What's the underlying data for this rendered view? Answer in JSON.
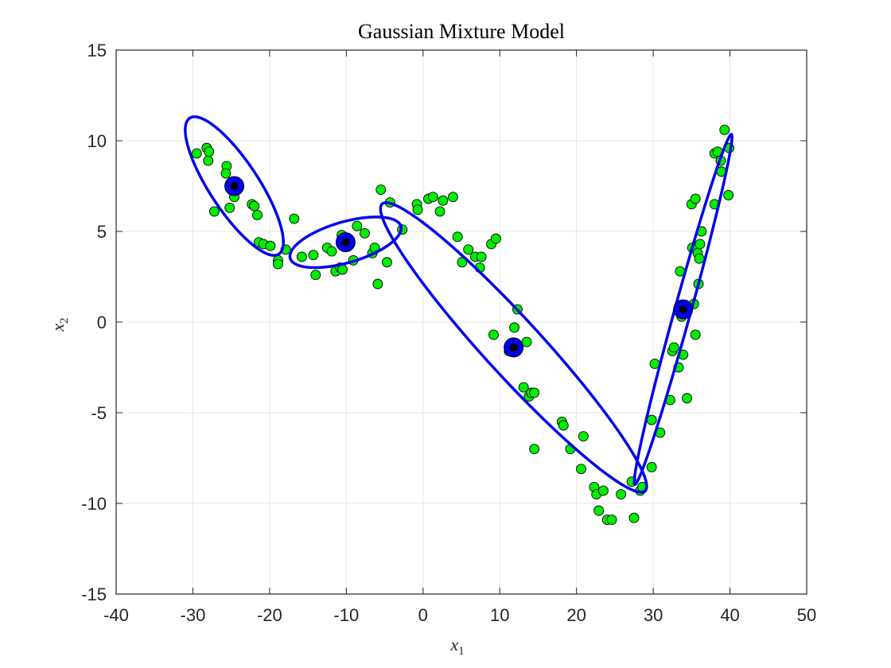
{
  "chart_data": {
    "type": "scatter",
    "title": "Gaussian Mixture Model",
    "xlabel": "x",
    "xlabel_sub": "1",
    "ylabel": "x",
    "ylabel_sub": "2",
    "xlim": [
      -40,
      50
    ],
    "ylim": [
      -15,
      15
    ],
    "xticks": [
      -40,
      -30,
      -20,
      -10,
      0,
      10,
      20,
      30,
      40,
      50
    ],
    "yticks": [
      -15,
      -10,
      -5,
      0,
      5,
      10,
      15
    ],
    "grid": true,
    "colors": {
      "points": "#00ee00",
      "point_edge": "#000000",
      "ellipse": "#0000ee",
      "center_outer": "#0000ee",
      "center_inner": "#000000",
      "grid": "#e6e6e6",
      "axes": "#262626"
    },
    "points": [
      [
        -29.5,
        9.3
      ],
      [
        -28.2,
        9.6
      ],
      [
        -28.0,
        8.9
      ],
      [
        -27.9,
        9.4
      ],
      [
        -27.2,
        6.1
      ],
      [
        -25.6,
        8.6
      ],
      [
        -25.7,
        8.2
      ],
      [
        -25.2,
        6.3
      ],
      [
        -24.5,
        7.3
      ],
      [
        -24.6,
        6.9
      ],
      [
        -22.3,
        6.5
      ],
      [
        -22.0,
        6.4
      ],
      [
        -21.6,
        5.9
      ],
      [
        -21.4,
        4.4
      ],
      [
        -20.8,
        4.3
      ],
      [
        -19.9,
        4.2
      ],
      [
        -18.9,
        3.4
      ],
      [
        -18.9,
        3.2
      ],
      [
        -17.9,
        4.0
      ],
      [
        -16.8,
        5.7
      ],
      [
        -15.8,
        3.6
      ],
      [
        -14.3,
        3.7
      ],
      [
        -14.0,
        2.6
      ],
      [
        -12.5,
        4.1
      ],
      [
        -11.9,
        3.9
      ],
      [
        -11.4,
        2.8
      ],
      [
        -10.8,
        3.0
      ],
      [
        -10.5,
        2.9
      ],
      [
        -10.6,
        4.8
      ],
      [
        -9.1,
        3.4
      ],
      [
        -8.6,
        5.3
      ],
      [
        -7.6,
        4.9
      ],
      [
        -6.6,
        3.8
      ],
      [
        -6.3,
        4.1
      ],
      [
        -5.9,
        2.1
      ],
      [
        -5.5,
        7.3
      ],
      [
        -4.7,
        3.3
      ],
      [
        -4.3,
        6.6
      ],
      [
        -2.7,
        5.1
      ],
      [
        -0.8,
        6.5
      ],
      [
        -0.7,
        6.2
      ],
      [
        0.7,
        6.8
      ],
      [
        1.3,
        6.9
      ],
      [
        2.2,
        6.1
      ],
      [
        2.6,
        6.7
      ],
      [
        3.9,
        6.9
      ],
      [
        4.5,
        4.7
      ],
      [
        5.1,
        3.3
      ],
      [
        5.9,
        4.0
      ],
      [
        6.8,
        3.6
      ],
      [
        7.6,
        3.6
      ],
      [
        7.4,
        3.0
      ],
      [
        8.9,
        4.3
      ],
      [
        9.5,
        4.6
      ],
      [
        9.2,
        -0.7
      ],
      [
        11.2,
        -1.6
      ],
      [
        11.9,
        -0.3
      ],
      [
        12.3,
        0.7
      ],
      [
        13.1,
        -3.6
      ],
      [
        13.5,
        -1.1
      ],
      [
        13.8,
        -4.1
      ],
      [
        14.1,
        -3.9
      ],
      [
        14.5,
        -3.9
      ],
      [
        14.5,
        -7.0
      ],
      [
        18.1,
        -5.5
      ],
      [
        18.3,
        -5.7
      ],
      [
        19.2,
        -7.0
      ],
      [
        20.6,
        -8.1
      ],
      [
        20.9,
        -6.3
      ],
      [
        22.3,
        -9.1
      ],
      [
        22.6,
        -9.5
      ],
      [
        22.9,
        -10.4
      ],
      [
        23.5,
        -9.3
      ],
      [
        24.0,
        -10.9
      ],
      [
        24.6,
        -10.9
      ],
      [
        25.8,
        -9.5
      ],
      [
        27.2,
        -8.8
      ],
      [
        27.5,
        -10.8
      ],
      [
        28.3,
        -9.3
      ],
      [
        28.6,
        -9.1
      ],
      [
        29.8,
        -8.0
      ],
      [
        29.8,
        -5.4
      ],
      [
        30.2,
        -2.3
      ],
      [
        30.9,
        -6.1
      ],
      [
        32.2,
        -4.3
      ],
      [
        32.5,
        -1.6
      ],
      [
        32.7,
        -1.4
      ],
      [
        33.3,
        -2.5
      ],
      [
        33.5,
        2.8
      ],
      [
        33.7,
        0.3
      ],
      [
        34.0,
        0.9
      ],
      [
        33.9,
        -1.8
      ],
      [
        34.4,
        -4.2
      ],
      [
        35.0,
        6.5
      ],
      [
        35.1,
        4.1
      ],
      [
        35.3,
        1.0
      ],
      [
        35.5,
        6.8
      ],
      [
        35.5,
        -0.7
      ],
      [
        35.8,
        3.8
      ],
      [
        35.9,
        2.1
      ],
      [
        36.0,
        3.5
      ],
      [
        36.3,
        5.0
      ],
      [
        38.0,
        6.5
      ],
      [
        38.0,
        9.3
      ],
      [
        38.4,
        9.4
      ],
      [
        38.8,
        8.9
      ],
      [
        38.9,
        8.3
      ],
      [
        39.3,
        10.6
      ],
      [
        39.8,
        7.0
      ],
      [
        39.9,
        9.6
      ],
      [
        36.1,
        4.3
      ]
    ],
    "components": [
      {
        "mean": [
          -24.6,
          7.5
        ],
        "sigma_x": 2.61,
        "sigma_y": 1.56,
        "corr": -0.81
      },
      {
        "mean": [
          -10.1,
          4.4
        ],
        "sigma_x": 2.96,
        "sigma_y": 0.57,
        "corr": 0.55
      },
      {
        "mean": [
          11.8,
          -1.4
        ],
        "sigma_x": 7.08,
        "sigma_y": 3.26,
        "corr": -0.958
      },
      {
        "mean": [
          33.9,
          0.7
        ],
        "sigma_x": 2.6,
        "sigma_y": 3.94,
        "corr": 0.985
      }
    ],
    "ellipse_scale": 2.45
  }
}
